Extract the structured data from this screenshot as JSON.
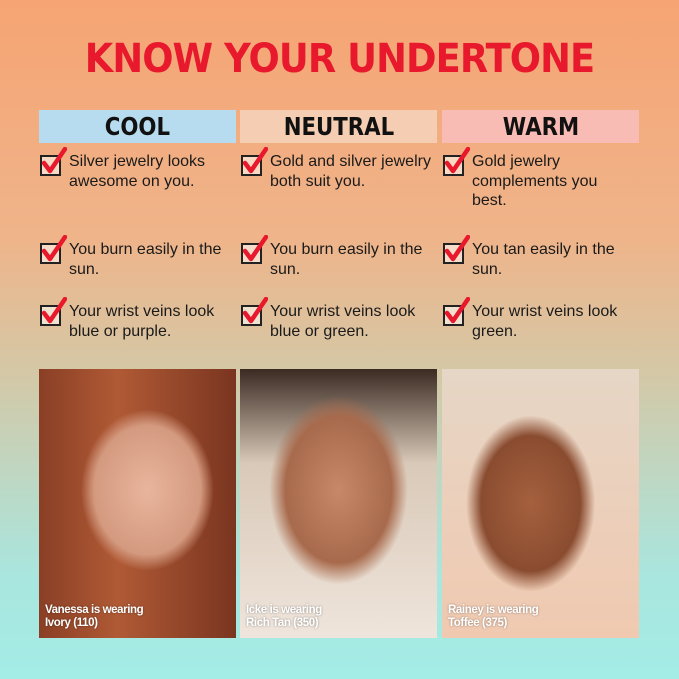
{
  "title": "KNOW YOUR UNDERTONE",
  "colors": {
    "title": "#e8192c",
    "cool": "#b8dcef",
    "neutral": "#f4cdb2",
    "warm": "#f9bcb4",
    "check": "#e8192c"
  },
  "columns": [
    {
      "header": "COOL",
      "items": [
        "Silver jewelry looks awesome on you.",
        "You burn easily in the sun.",
        "Your wrist veins look blue or purple."
      ],
      "caption": [
        "Vanessa is wearing",
        "Ivory (110)"
      ]
    },
    {
      "header": "NEUTRAL",
      "items": [
        "Gold and silver jewelry both suit you.",
        "You burn easily in the sun.",
        "Your wrist veins look blue or green."
      ],
      "caption": [
        "Icke is wearing",
        "Rich Tan (350)"
      ]
    },
    {
      "header": "WARM",
      "items": [
        "Gold jewelry complements you best.",
        "You tan easily in the sun.",
        "Your wrist veins look green."
      ],
      "caption": [
        "Rainey is wearing",
        "Toffee (375)"
      ]
    }
  ]
}
